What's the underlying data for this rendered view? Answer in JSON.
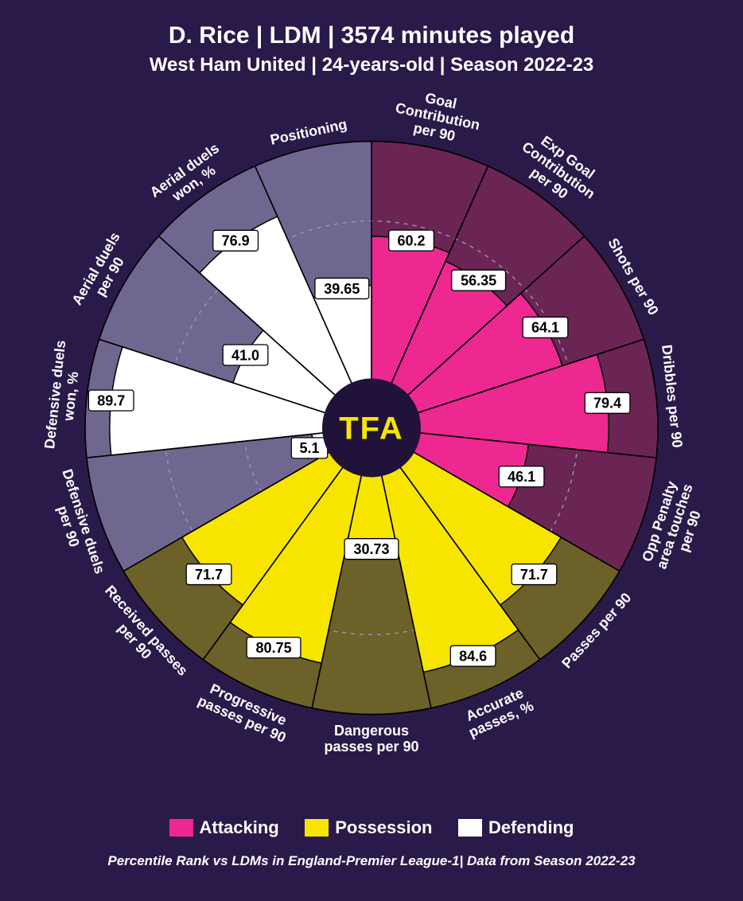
{
  "title": "D. Rice | LDM | 3574 minutes played",
  "subtitle": "West Ham United | 24-years-old | Season 2022-23",
  "footer": "Percentile Rank vs LDMs in England-Premier League-1| Data from Season 2022-23",
  "center_label": "TFA",
  "colors": {
    "background": "#2a1a4a",
    "attacking_bg": "#6b2554",
    "attacking_fill": "#ed2891",
    "possession_bg": "#6b6129",
    "possession_fill": "#f7e500",
    "defending_bg": "#6f6790",
    "defending_fill": "#ffffff",
    "grid": "#9c95b5",
    "stroke": "#000000",
    "text": "#ffffff",
    "center_circle": "#201238",
    "center_text": "#f7e500",
    "value_box_fill": "#ffffff",
    "value_box_stroke": "#000000",
    "value_text": "#000000"
  },
  "chart": {
    "type": "polar-bar",
    "outer_radius": 360,
    "inner_radius": 60,
    "grid_radii_pct": [
      33.3,
      66.6
    ],
    "value_font_size": 18,
    "axis_label_font_size": 18
  },
  "legend": [
    {
      "label": "Attacking",
      "color": "#ed2891"
    },
    {
      "label": "Possession",
      "color": "#f7e500"
    },
    {
      "label": "Defending",
      "color": "#ffffff"
    }
  ],
  "metrics": [
    {
      "label": "Goal Contribution per 90",
      "value": 60.2,
      "display": "60.2",
      "group": "attacking"
    },
    {
      "label": "Exp Goal Contribution per 90",
      "value": 56.35,
      "display": "56.35",
      "group": "attacking"
    },
    {
      "label": "Shots per 90",
      "value": 64.1,
      "display": "64.1",
      "group": "attacking"
    },
    {
      "label": "Dribbles per 90",
      "value": 79.4,
      "display": "79.4",
      "group": "attacking"
    },
    {
      "label": "Opp Penalty area touches per 90",
      "value": 46.1,
      "display": "46.1",
      "group": "attacking"
    },
    {
      "label": "Passes per 90",
      "value": 71.7,
      "display": "71.7",
      "group": "possession"
    },
    {
      "label": "Accurate passes, %",
      "value": 84.6,
      "display": "84.6",
      "group": "possession"
    },
    {
      "label": "Dangerous passes per 90",
      "value": 30.73,
      "display": "30.73",
      "group": "possession"
    },
    {
      "label": "Progressive passes per 90",
      "value": 80.75,
      "display": "80.75",
      "group": "possession"
    },
    {
      "label": "Received passes per 90",
      "value": 71.7,
      "display": "71.7",
      "group": "possession"
    },
    {
      "label": "Defensive duels per 90",
      "value": 5.1,
      "display": "5.1",
      "group": "defending"
    },
    {
      "label": "Defensive duels won, %",
      "value": 89.7,
      "display": "89.7",
      "group": "defending"
    },
    {
      "label": "Aerial duels per 90",
      "value": 41.0,
      "display": "41.0",
      "group": "defending"
    },
    {
      "label": "Aerial duels won, %",
      "value": 76.9,
      "display": "76.9",
      "group": "defending"
    },
    {
      "label": "Positioning",
      "value": 39.65,
      "display": "39.65",
      "group": "defending"
    }
  ]
}
